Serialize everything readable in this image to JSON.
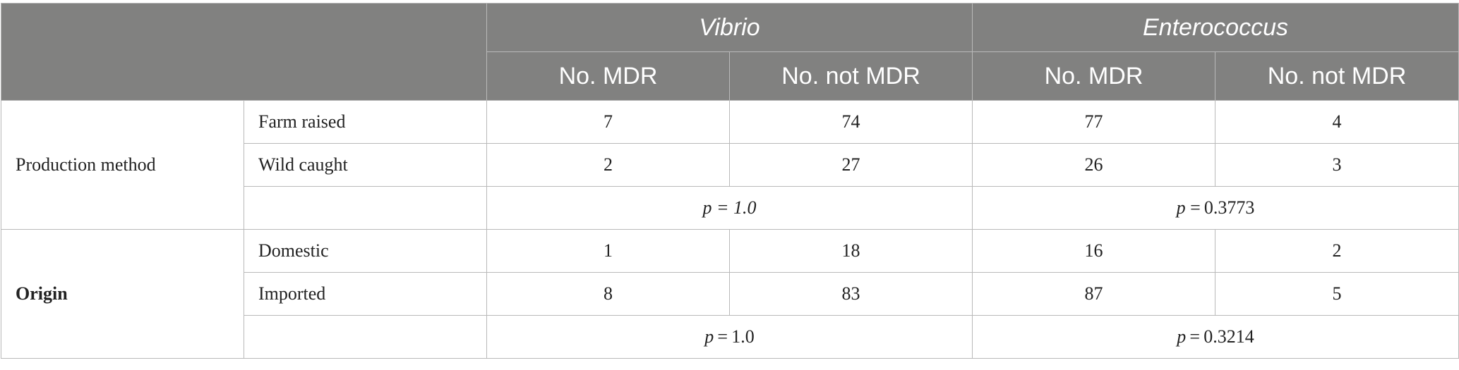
{
  "header": {
    "genus1": "Vibrio",
    "genus2": "Enterococcus",
    "col1": "No. MDR",
    "col2": "No. not MDR",
    "col3": "No. MDR",
    "col4": "No. not MDR"
  },
  "groups": [
    {
      "label": "Production method",
      "rows": [
        {
          "label": "Farm raised",
          "v_mdr": "7",
          "v_not": "74",
          "e_mdr": "77",
          "e_not": "4"
        },
        {
          "label": "Wild caught",
          "v_mdr": "2",
          "v_not": "27",
          "e_mdr": "26",
          "e_not": "3"
        }
      ],
      "p_vibrio_label": "p",
      "p_vibrio_value": " = 1.0",
      "p_entero_label": "p",
      "p_entero_value": " = 0.3773"
    },
    {
      "label": "Origin",
      "rows": [
        {
          "label": "Domestic",
          "v_mdr": "1",
          "v_not": "18",
          "e_mdr": "16",
          "e_not": "2"
        },
        {
          "label": "Imported",
          "v_mdr": "8",
          "v_not": "83",
          "e_mdr": "87",
          "e_not": "5"
        }
      ],
      "p_vibrio_label": "p",
      "p_vibrio_value": " = 1.0",
      "p_entero_label": "p",
      "p_entero_value": " = 0.3214"
    }
  ]
}
